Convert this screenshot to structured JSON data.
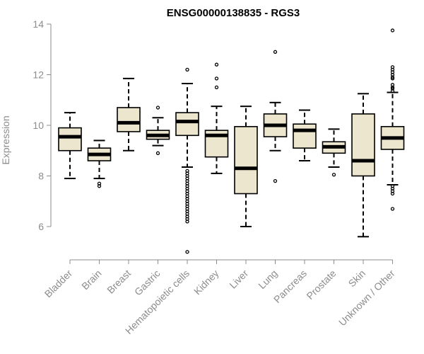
{
  "chart_data": {
    "type": "boxplot",
    "title": "ENSG00000138835 - RGS3",
    "ylabel": "Expression",
    "xlabel": "",
    "ylim": [
      4.8,
      14.2
    ],
    "yticks": [
      6,
      8,
      10,
      12,
      14
    ],
    "grid": false,
    "box_fill": "#ede6cf",
    "categories": [
      "Bladder",
      "Brain",
      "Breast",
      "Gastric",
      "Hematopoietic cells",
      "Kidney",
      "Liver",
      "Lung",
      "Pancreas",
      "Prostate",
      "Skin",
      "Unknown / Other"
    ],
    "boxes": [
      {
        "name": "Bladder",
        "whisker_low": 7.9,
        "q1": 9.0,
        "median": 9.55,
        "q3": 9.9,
        "whisker_high": 10.5,
        "outliers": []
      },
      {
        "name": "Brain",
        "whisker_low": 7.9,
        "q1": 8.6,
        "median": 8.85,
        "q3": 9.1,
        "whisker_high": 9.4,
        "outliers": [
          7.6,
          7.7
        ]
      },
      {
        "name": "Breast",
        "whisker_low": 9.0,
        "q1": 9.75,
        "median": 10.1,
        "q3": 10.7,
        "whisker_high": 11.85,
        "outliers": []
      },
      {
        "name": "Gastric",
        "whisker_low": 9.2,
        "q1": 9.45,
        "median": 9.6,
        "q3": 9.8,
        "whisker_high": 10.3,
        "outliers": [
          8.9,
          10.7
        ]
      },
      {
        "name": "Hematopoietic cells",
        "whisker_low": 8.35,
        "q1": 9.6,
        "median": 10.15,
        "q3": 10.5,
        "whisker_high": 11.65,
        "outliers": [
          12.2,
          8.2,
          8.1,
          8.0,
          7.9,
          7.8,
          7.7,
          7.6,
          7.5,
          7.4,
          7.3,
          7.2,
          7.1,
          7.0,
          6.9,
          6.8,
          6.7,
          6.6,
          6.5,
          6.4,
          6.3,
          6.2,
          5.0
        ]
      },
      {
        "name": "Kidney",
        "whisker_low": 8.1,
        "q1": 8.75,
        "median": 9.6,
        "q3": 9.8,
        "whisker_high": 10.75,
        "outliers": [
          12.4,
          11.85,
          11.5
        ]
      },
      {
        "name": "Liver",
        "whisker_low": 6.0,
        "q1": 7.3,
        "median": 8.3,
        "q3": 9.95,
        "whisker_high": 10.75,
        "outliers": []
      },
      {
        "name": "Lung",
        "whisker_low": 9.0,
        "q1": 9.55,
        "median": 10.0,
        "q3": 10.45,
        "whisker_high": 10.9,
        "outliers": [
          12.9,
          7.8
        ]
      },
      {
        "name": "Pancreas",
        "whisker_low": 8.6,
        "q1": 9.1,
        "median": 9.8,
        "q3": 10.05,
        "whisker_high": 10.6,
        "outliers": []
      },
      {
        "name": "Prostate",
        "whisker_low": 8.35,
        "q1": 8.9,
        "median": 9.15,
        "q3": 9.35,
        "whisker_high": 9.85,
        "outliers": [
          8.05
        ]
      },
      {
        "name": "Skin",
        "whisker_low": 5.6,
        "q1": 8.0,
        "median": 8.6,
        "q3": 10.45,
        "whisker_high": 11.25,
        "outliers": []
      },
      {
        "name": "Unknown / Other",
        "whisker_low": 7.65,
        "q1": 9.05,
        "median": 9.5,
        "q3": 9.95,
        "whisker_high": 11.3,
        "outliers": [
          13.75,
          12.3,
          12.2,
          12.1,
          12.0,
          11.9,
          11.85,
          11.6,
          11.5,
          11.45,
          11.35,
          7.6,
          7.5,
          7.4,
          7.3,
          6.7
        ]
      }
    ]
  }
}
